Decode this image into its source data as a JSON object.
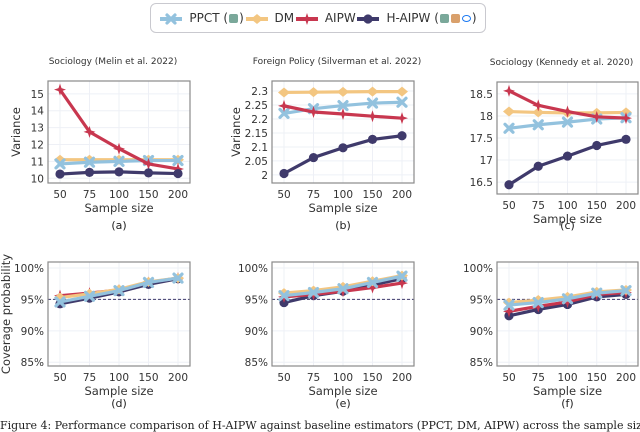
{
  "legend": {
    "items": [
      {
        "label": "PPCT (",
        "suffix": ")",
        "series": "PPCT",
        "marker": "cross",
        "badges": [
          "gpt-icon"
        ]
      },
      {
        "label": "DM",
        "suffix": "",
        "series": "DM",
        "marker": "diamond",
        "badges": []
      },
      {
        "label": "AIPW",
        "suffix": "",
        "series": "AIPW",
        "marker": "star",
        "badges": []
      },
      {
        "label": "H-AIPW (",
        "suffix": ")",
        "series": "H-AIPW",
        "marker": "circle",
        "badges": [
          "gpt-icon",
          "anthropic-icon",
          "meta-icon"
        ]
      }
    ]
  },
  "colors": {
    "PPCT": "#93c2de",
    "DM": "#f3c681",
    "AIPW": "#c8374f",
    "H-AIPW": "#3f3a6b",
    "reference": "#3f3a6b"
  },
  "caption": "Figure 4: Performance comparison of H-AIPW against baseline estimators (PPCT, DM, AIPW) across the sample sizes",
  "chart_data": [
    {
      "type": "line",
      "panel": "(a)",
      "title": "Sociology (Melin et al. 2022)",
      "xlabel": "Sample size",
      "ylabel": "Variance",
      "categories": [
        "50",
        "75",
        "100",
        "150",
        "200"
      ],
      "ylim": [
        9.72,
        15.76
      ],
      "yticks": [
        "10",
        "11",
        "12",
        "13",
        "14",
        "15"
      ],
      "grid": true,
      "series": [
        {
          "name": "DM",
          "values": [
            11.1,
            11.1,
            11.1,
            11.1,
            11.1
          ]
        },
        {
          "name": "PPCT",
          "values": [
            10.85,
            10.95,
            11.0,
            11.05,
            11.05
          ]
        },
        {
          "name": "AIPW",
          "values": [
            15.25,
            12.75,
            11.75,
            10.85,
            10.55
          ]
        },
        {
          "name": "H-AIPW",
          "values": [
            10.25,
            10.35,
            10.38,
            10.32,
            10.28
          ]
        }
      ]
    },
    {
      "type": "line",
      "panel": "(b)",
      "title": "Foreign Policy (Silverman et al. 2022)",
      "xlabel": "Sample size",
      "ylabel": "Variance",
      "categories": [
        "50",
        "75",
        "100",
        "150",
        "200"
      ],
      "ylim": [
        1.971,
        2.336
      ],
      "yticks": [
        "2",
        "2.05",
        "2.1",
        "2.15",
        "2.2",
        "2.25",
        "2.3"
      ],
      "grid": true,
      "series": [
        {
          "name": "DM",
          "values": [
            2.295,
            2.296,
            2.297,
            2.298,
            2.298
          ]
        },
        {
          "name": "PPCT",
          "values": [
            2.22,
            2.237,
            2.248,
            2.257,
            2.26
          ]
        },
        {
          "name": "AIPW",
          "values": [
            2.247,
            2.225,
            2.218,
            2.21,
            2.203
          ]
        },
        {
          "name": "H-AIPW",
          "values": [
            2.005,
            2.062,
            2.097,
            2.127,
            2.14
          ]
        }
      ]
    },
    {
      "type": "line",
      "panel": "(c)",
      "title": "Sociology (Kennedy et al. 2020)",
      "xlabel": "Sample size",
      "ylabel": "",
      "categories": [
        "50",
        "75",
        "100",
        "150",
        "200"
      ],
      "ylim": [
        16.23,
        18.77
      ],
      "yticks": [
        "16.5",
        "17",
        "17.5",
        "18",
        "18.5"
      ],
      "grid": true,
      "series": [
        {
          "name": "DM",
          "values": [
            18.1,
            18.08,
            18.07,
            18.07,
            18.08
          ]
        },
        {
          "name": "PPCT",
          "values": [
            17.72,
            17.8,
            17.86,
            17.93,
            17.96
          ]
        },
        {
          "name": "AIPW",
          "values": [
            18.57,
            18.24,
            18.1,
            17.98,
            17.95
          ]
        },
        {
          "name": "H-AIPW",
          "values": [
            16.44,
            16.86,
            17.09,
            17.33,
            17.47
          ]
        }
      ]
    },
    {
      "type": "line",
      "panel": "(d)",
      "title": "",
      "xlabel": "Sample size",
      "ylabel": "Coverage probability",
      "categories": [
        "50",
        "75",
        "100",
        "150",
        "200"
      ],
      "ylim": [
        84.4,
        100.96
      ],
      "yticks": [
        "85%",
        "90%",
        "95%",
        "100%"
      ],
      "reference_line": 95,
      "grid": true,
      "series": [
        {
          "name": "AIPW",
          "values": [
            95.6,
            96.0,
            96.5,
            97.7,
            98.4
          ]
        },
        {
          "name": "H-AIPW",
          "values": [
            94.3,
            95.2,
            96.2,
            97.4,
            98.3
          ]
        },
        {
          "name": "DM",
          "values": [
            95.3,
            95.9,
            96.6,
            97.8,
            98.4
          ]
        },
        {
          "name": "PPCT",
          "values": [
            94.6,
            95.5,
            96.4,
            97.7,
            98.4
          ]
        }
      ]
    },
    {
      "type": "line",
      "panel": "(e)",
      "title": "",
      "xlabel": "Sample size",
      "ylabel": "",
      "categories": [
        "50",
        "75",
        "100",
        "150",
        "200"
      ],
      "ylim": [
        84.4,
        100.96
      ],
      "yticks": [
        "85%",
        "90%",
        "95%",
        "100%"
      ],
      "reference_line": 95,
      "grid": true,
      "series": [
        {
          "name": "H-AIPW",
          "values": [
            94.5,
            95.6,
            96.3,
            97.3,
            98.3
          ]
        },
        {
          "name": "AIPW",
          "values": [
            95.4,
            95.8,
            96.3,
            96.9,
            97.6
          ]
        },
        {
          "name": "DM",
          "values": [
            96.0,
            96.4,
            97.0,
            97.9,
            98.8
          ]
        },
        {
          "name": "PPCT",
          "values": [
            95.6,
            96.1,
            96.7,
            97.7,
            98.7
          ]
        }
      ]
    },
    {
      "type": "line",
      "panel": "(f)",
      "title": "",
      "xlabel": "Sample size",
      "ylabel": "",
      "categories": [
        "50",
        "75",
        "100",
        "150",
        "200"
      ],
      "ylim": [
        84.4,
        100.96
      ],
      "yticks": [
        "85%",
        "90%",
        "95%",
        "100%"
      ],
      "reference_line": 95,
      "grid": true,
      "series": [
        {
          "name": "H-AIPW",
          "values": [
            92.4,
            93.4,
            94.2,
            95.4,
            95.8
          ]
        },
        {
          "name": "AIPW",
          "values": [
            93.1,
            93.9,
            94.6,
            95.8,
            96.1
          ]
        },
        {
          "name": "DM",
          "values": [
            94.5,
            94.9,
            95.4,
            96.2,
            96.5
          ]
        },
        {
          "name": "PPCT",
          "values": [
            94.1,
            94.5,
            95.1,
            96.0,
            96.4
          ]
        }
      ]
    }
  ]
}
